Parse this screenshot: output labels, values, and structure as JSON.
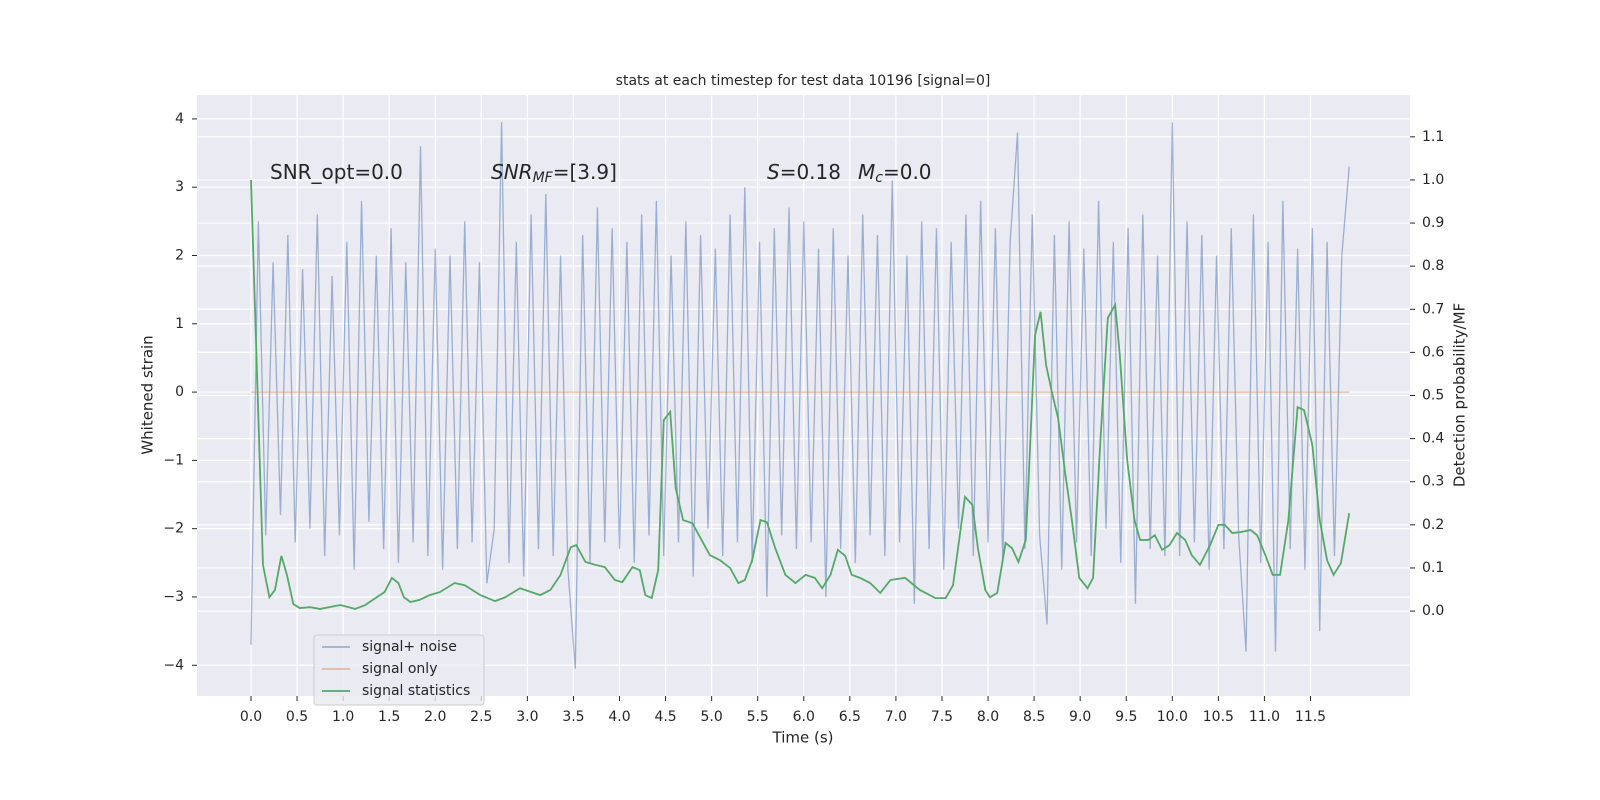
{
  "chart_data": {
    "type": "line",
    "title": "stats at each timestep for test data 10196 [signal=0]",
    "xlabel": "Time (s)",
    "ylabel": "Whitened strain",
    "y2label": "Detection probability/MF",
    "xlim": [
      -0.586,
      12.58
    ],
    "ylim": [
      -4.45,
      4.35
    ],
    "y2lim": [
      -0.197,
      1.197
    ],
    "xticks": [
      {
        "value": 0,
        "label": "0.0"
      },
      0.5,
      {
        "value": 1,
        "label": "1.0"
      },
      1.5,
      {
        "value": 2,
        "label": "2.0"
      },
      2.5,
      {
        "value": 3,
        "label": "3.0"
      },
      3.5,
      {
        "value": 4,
        "label": "4.0"
      },
      4.5,
      {
        "value": 5,
        "label": "5.0"
      },
      5.5,
      {
        "value": 6,
        "label": "6.0"
      },
      6.5,
      {
        "value": 7,
        "label": "7.0"
      },
      7.5,
      {
        "value": 8,
        "label": "8.0"
      },
      8.5,
      {
        "value": 9,
        "label": "9.0"
      },
      9.5,
      {
        "value": 10,
        "label": "10.0"
      },
      10.5,
      {
        "value": 11,
        "label": "11.0"
      },
      11.5
    ],
    "yticks": [
      {
        "value": -4,
        "label": "−4"
      },
      {
        "value": -3,
        "label": "−3"
      },
      {
        "value": -2,
        "label": "−2"
      },
      {
        "value": -1,
        "label": "−1"
      },
      0,
      1,
      2,
      3,
      4
    ],
    "y2ticks": [
      {
        "value": 0,
        "label": "0.0"
      },
      0.1,
      0.2,
      0.3,
      0.4,
      0.5,
      0.6,
      0.7,
      0.8,
      0.9,
      {
        "value": 1,
        "label": "1.0"
      },
      1.1
    ],
    "grid": true,
    "legend": "lower left",
    "annotations": [
      {
        "text": "SNR_opt=0.0"
      },
      {
        "italic": "SNR",
        "sub": "MF",
        "text": "=[3.9]"
      },
      {
        "italic": "S",
        "text": "=0.18"
      },
      {
        "italic": "M",
        "sub": "c",
        "text": "=0.0"
      }
    ],
    "series": [
      {
        "name": "signal+ noise",
        "color": "#4c72b0",
        "x": [
          0,
          0.08,
          0.16,
          0.24,
          0.32,
          0.4,
          0.48,
          0.56,
          0.64,
          0.72,
          0.8,
          0.88,
          0.96,
          1.04,
          1.12,
          1.2,
          1.28,
          1.36,
          1.44,
          1.52,
          1.6,
          1.68,
          1.76,
          1.84,
          1.92,
          2,
          2.08,
          2.16,
          2.24,
          2.32,
          2.4,
          2.48,
          2.56,
          2.64,
          2.72,
          2.8,
          2.88,
          2.96,
          3.04,
          3.12,
          3.2,
          3.28,
          3.36,
          3.44,
          3.52,
          3.6,
          3.68,
          3.76,
          3.84,
          3.92,
          4,
          4.08,
          4.16,
          4.24,
          4.32,
          4.4,
          4.48,
          4.56,
          4.64,
          4.72,
          4.8,
          4.88,
          4.96,
          5.04,
          5.12,
          5.2,
          5.28,
          5.36,
          5.44,
          5.52,
          5.6,
          5.68,
          5.76,
          5.84,
          5.92,
          6,
          6.08,
          6.16,
          6.24,
          6.32,
          6.4,
          6.48,
          6.56,
          6.64,
          6.72,
          6.8,
          6.88,
          6.96,
          7.04,
          7.12,
          7.2,
          7.28,
          7.36,
          7.44,
          7.52,
          7.6,
          7.68,
          7.76,
          7.84,
          7.92,
          8,
          8.08,
          8.16,
          8.24,
          8.32,
          8.4,
          8.48,
          8.56,
          8.64,
          8.72,
          8.8,
          8.88,
          8.96,
          9.04,
          9.12,
          9.2,
          9.28,
          9.36,
          9.44,
          9.52,
          9.6,
          9.68,
          9.76,
          9.84,
          9.92,
          10,
          10.08,
          10.16,
          10.24,
          10.32,
          10.4,
          10.48,
          10.56,
          10.64,
          10.72,
          10.8,
          10.88,
          10.96,
          11.04,
          11.12,
          11.2,
          11.28,
          11.36,
          11.44,
          11.52,
          11.6,
          11.68,
          11.76,
          11.84,
          11.92
        ],
        "values": [
          -3.7,
          2.5,
          -2.1,
          1.9,
          -1.8,
          2.3,
          -2.2,
          1.8,
          -2.0,
          2.6,
          -2.4,
          1.7,
          -2.1,
          2.2,
          -2.6,
          2.8,
          -1.9,
          2.0,
          -2.3,
          2.4,
          -2.5,
          1.9,
          -2.2,
          3.6,
          -2.4,
          2.1,
          -2.6,
          2.0,
          -2.3,
          2.5,
          -2.2,
          1.9,
          -2.8,
          -2.0,
          3.95,
          -2.5,
          2.2,
          -2.7,
          2.6,
          -2.3,
          2.9,
          -2.4,
          2.0,
          -2.6,
          -4.05,
          2.3,
          -2.5,
          2.7,
          -2.2,
          2.4,
          -2.3,
          2.2,
          -2.5,
          2.6,
          -2.1,
          2.8,
          -2.4,
          2.0,
          -2.2,
          2.5,
          -2.7,
          2.3,
          -2.0,
          2.1,
          -2.4,
          2.6,
          -2.2,
          3.0,
          -2.5,
          2.2,
          -3.0,
          2.4,
          -2.1,
          2.7,
          -2.3,
          2.5,
          -2.2,
          2.1,
          -3.0,
          2.4,
          -2.3,
          2.0,
          -2.5,
          2.6,
          -2.1,
          2.3,
          -2.4,
          3.1,
          -2.2,
          2.0,
          -3.1,
          2.5,
          -2.3,
          2.4,
          -2.6,
          2.2,
          -2.0,
          2.6,
          -2.4,
          2.8,
          -2.2,
          2.4,
          -2.5,
          2.2,
          3.8,
          -2.3,
          2.6,
          -2.1,
          -3.4,
          2.3,
          -2.6,
          2.5,
          -2.2,
          2.1,
          -2.4,
          2.8,
          -2.0,
          2.2,
          -2.5,
          2.4,
          -3.1,
          2.6,
          -2.3,
          2.0,
          -2.4,
          3.95,
          -2.4,
          2.5,
          -2.2,
          2.3,
          -2.6,
          2.0,
          -2.3,
          2.4,
          -2.1,
          -3.8,
          2.6,
          -2.5,
          2.2,
          -3.8,
          2.8,
          -2.3,
          2.1,
          -2.6,
          2.4,
          -3.5,
          2.2,
          -2.4,
          2.0,
          3.3
        ]
      },
      {
        "name": "signal only",
        "color": "#dd8452",
        "x": [
          0,
          11.92
        ],
        "values": [
          0,
          0
        ]
      },
      {
        "name": "signal statistics",
        "color": "#55a868",
        "axis": "y2",
        "x": [
          0,
          0.13,
          0.2,
          0.26,
          0.33,
          0.39,
          0.46,
          0.53,
          0.64,
          0.75,
          0.97,
          1.13,
          1.24,
          1.35,
          1.45,
          1.53,
          1.6,
          1.66,
          1.73,
          1.83,
          1.94,
          2.05,
          2.21,
          2.32,
          2.49,
          2.65,
          2.76,
          2.92,
          3.14,
          3.25,
          3.36,
          3.47,
          3.53,
          3.63,
          3.74,
          3.84,
          3.95,
          4.03,
          4.14,
          4.22,
          4.28,
          4.35,
          4.42,
          4.48,
          4.55,
          4.61,
          4.69,
          4.79,
          4.88,
          4.98,
          5.09,
          5.2,
          5.29,
          5.36,
          5.44,
          5.53,
          5.6,
          5.69,
          5.8,
          5.91,
          6.02,
          6.12,
          6.2,
          6.29,
          6.37,
          6.45,
          6.52,
          6.61,
          6.72,
          6.83,
          6.94,
          7.1,
          7.26,
          7.43,
          7.54,
          7.62,
          7.75,
          7.83,
          7.89,
          7.97,
          8.02,
          8.1,
          8.19,
          8.26,
          8.33,
          8.41,
          8.44,
          8.51,
          8.57,
          8.63,
          8.7,
          8.76,
          8.84,
          8.91,
          8.99,
          9.08,
          9.14,
          9.22,
          9.3,
          9.38,
          9.43,
          9.51,
          9.59,
          9.65,
          9.74,
          9.81,
          9.89,
          9.97,
          10.05,
          10.14,
          10.21,
          10.3,
          10.41,
          10.5,
          10.57,
          10.65,
          10.74,
          10.85,
          10.92,
          11.01,
          11.09,
          11.17,
          11.26,
          11.36,
          11.43,
          11.52,
          11.6,
          11.68,
          11.75,
          11.83,
          11.92
        ],
        "values": [
          1.0,
          0.107,
          0.032,
          0.049,
          0.128,
          0.084,
          0.016,
          0.007,
          0.009,
          0.005,
          0.014,
          0.005,
          0.014,
          0.03,
          0.044,
          0.077,
          0.065,
          0.032,
          0.021,
          0.026,
          0.037,
          0.044,
          0.065,
          0.06,
          0.037,
          0.023,
          0.032,
          0.053,
          0.037,
          0.049,
          0.084,
          0.148,
          0.153,
          0.114,
          0.107,
          0.102,
          0.072,
          0.067,
          0.102,
          0.095,
          0.037,
          0.03,
          0.095,
          0.443,
          0.462,
          0.285,
          0.211,
          0.204,
          0.169,
          0.13,
          0.118,
          0.1,
          0.065,
          0.072,
          0.118,
          0.211,
          0.206,
          0.146,
          0.084,
          0.065,
          0.084,
          0.077,
          0.053,
          0.084,
          0.142,
          0.128,
          0.084,
          0.077,
          0.065,
          0.042,
          0.072,
          0.077,
          0.049,
          0.03,
          0.03,
          0.06,
          0.265,
          0.246,
          0.146,
          0.049,
          0.032,
          0.042,
          0.158,
          0.146,
          0.114,
          0.165,
          0.304,
          0.64,
          0.694,
          0.571,
          0.501,
          0.448,
          0.316,
          0.211,
          0.077,
          0.053,
          0.077,
          0.397,
          0.68,
          0.71,
          0.594,
          0.35,
          0.211,
          0.165,
          0.165,
          0.176,
          0.142,
          0.153,
          0.181,
          0.165,
          0.13,
          0.107,
          0.153,
          0.2,
          0.2,
          0.181,
          0.183,
          0.188,
          0.176,
          0.13,
          0.084,
          0.084,
          0.211,
          0.473,
          0.466,
          0.385,
          0.211,
          0.118,
          0.084,
          0.111,
          0.227
        ]
      }
    ]
  }
}
